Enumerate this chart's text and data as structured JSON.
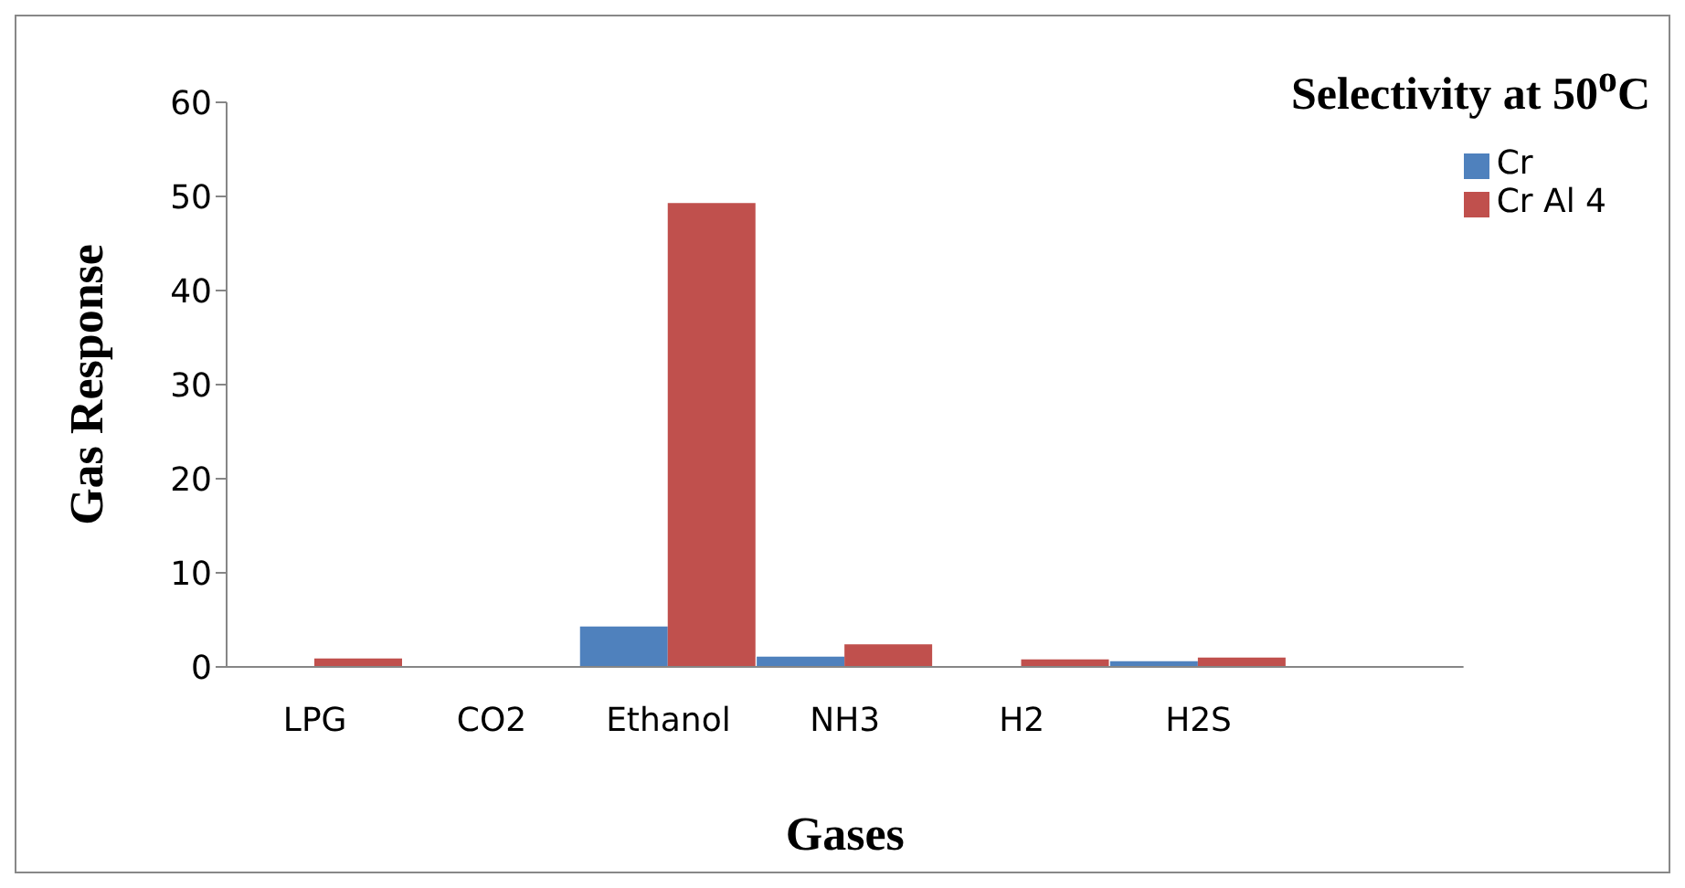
{
  "chart_data": {
    "type": "bar",
    "title": "Selectivity at 50$^{o}$C",
    "xlabel": "Gases",
    "ylabel": "Gas  Response",
    "categories": [
      "LPG",
      "CO2",
      "Ethanol",
      "NH3",
      "H2",
      "H2S",
      null
    ],
    "series": [
      {
        "name": "Cr",
        "color": "#4f81bd",
        "values": [
          0.1,
          0,
          4.3,
          1.1,
          0.1,
          0.6,
          null
        ]
      },
      {
        "name": "Cr Al 4",
        "color": "#c0504d",
        "values": [
          0.9,
          0,
          49.3,
          2.4,
          0.8,
          1.0,
          null
        ]
      }
    ],
    "ylim": [
      0,
      60
    ],
    "yticks": [
      0,
      10,
      20,
      30,
      40,
      50,
      60
    ],
    "grid": false,
    "legend": "right"
  }
}
